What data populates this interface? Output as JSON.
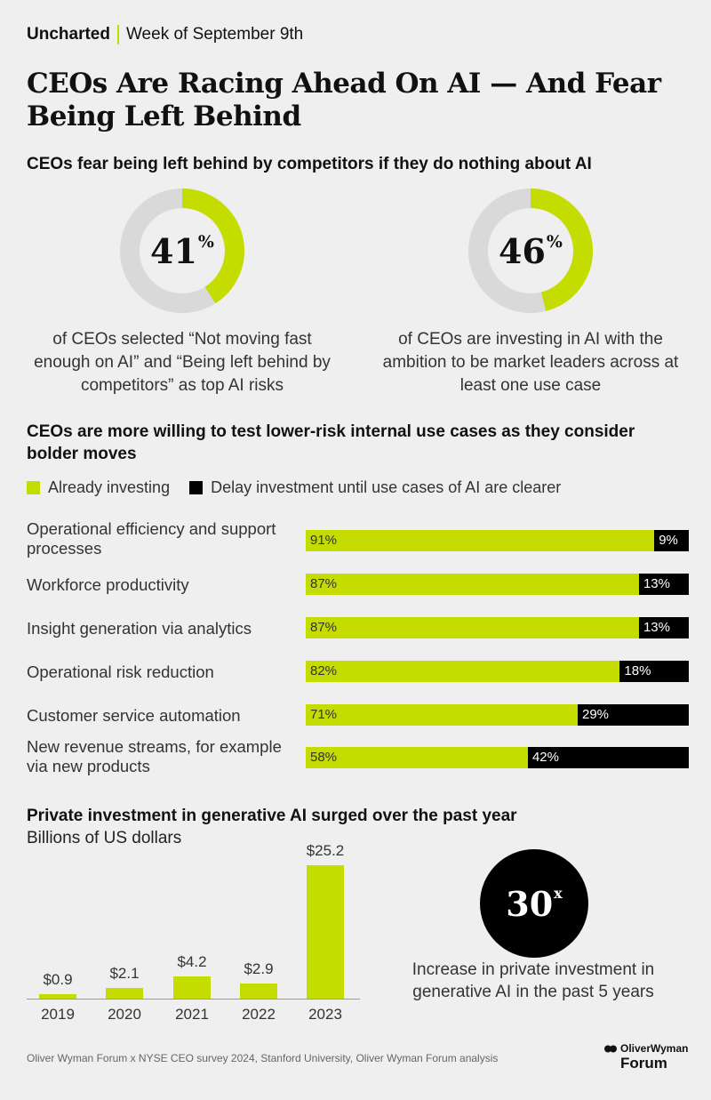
{
  "header": {
    "brand": "Uncharted",
    "date": "Week of September 9th"
  },
  "title": "CEOs Are Racing Ahead On AI — And Fear Being Left Behind",
  "section1": {
    "title": "CEOs fear being left behind by competitors if they do nothing about AI",
    "stats": [
      {
        "value": "41",
        "unit": "%",
        "percent": 41,
        "caption": "of CEOs selected “Not moving fast enough on AI” and “Being left behind by competitors” as top AI risks"
      },
      {
        "value": "46",
        "unit": "%",
        "percent": 46,
        "caption": "of CEOs are investing in AI with the ambition to be market leaders across at least one use case"
      }
    ]
  },
  "section2": {
    "title": "CEOs are more willing to test lower-risk internal use cases as they consider bolder moves"
  },
  "section3": {
    "title": "Private investment in generative AI surged over the past year",
    "subtitle": "Billions of US dollars",
    "highlight": {
      "value": "30",
      "unit": "x",
      "caption": "Increase in private investment in generative AI in the past 5 years"
    }
  },
  "source": "Oliver Wyman Forum x NYSE CEO survey 2024, Stanford University, Oliver Wyman Forum analysis",
  "logo": {
    "line1": "OliverWyman",
    "line2": "Forum"
  },
  "colors": {
    "accent": "#c5dc00",
    "dark": "#000000",
    "track": "#d9d9d9",
    "background": "#efefef"
  },
  "chart_data": [
    {
      "type": "pie",
      "variant": "donut",
      "values": [
        41,
        59
      ],
      "display": "41%"
    },
    {
      "type": "pie",
      "variant": "donut",
      "values": [
        46,
        54
      ],
      "display": "46%"
    },
    {
      "type": "bar",
      "orientation": "horizontal",
      "stacked": true,
      "legend_position": "top-left",
      "categories": [
        "Operational efficiency and support processes",
        "Workforce productivity",
        "Insight generation via analytics",
        "Operational risk reduction",
        "Customer service automation",
        "New revenue streams, for example via new products"
      ],
      "series": [
        {
          "name": "Already investing",
          "color": "#c5dc00",
          "values": [
            91,
            87,
            87,
            82,
            71,
            58
          ],
          "labels": [
            "91%",
            "87%",
            "87%",
            "82%",
            "71%",
            "58%"
          ]
        },
        {
          "name": "Delay investment until use cases of AI are clearer",
          "color": "#000000",
          "values": [
            9,
            13,
            13,
            18,
            29,
            42
          ],
          "labels": [
            "9%",
            "13%",
            "13%",
            "18%",
            "29%",
            "42%"
          ]
        }
      ]
    },
    {
      "type": "bar",
      "orientation": "vertical",
      "categories": [
        "2019",
        "2020",
        "2021",
        "2022",
        "2023"
      ],
      "values": [
        0.9,
        2.1,
        4.2,
        2.9,
        25.2
      ],
      "labels": [
        "$0.9",
        "$2.1",
        "$4.2",
        "$2.9",
        "$25.2"
      ],
      "ylabel": "Billions of US dollars",
      "ylim": [
        0,
        25.2
      ],
      "grid": false
    }
  ]
}
